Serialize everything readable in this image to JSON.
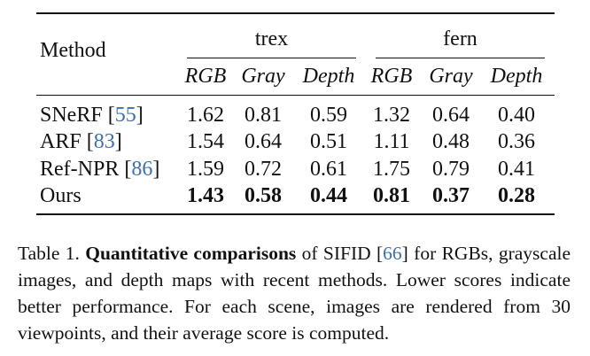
{
  "table": {
    "method_header": "Method",
    "scenes": [
      "trex",
      "fern"
    ],
    "subcolumns": [
      "RGB",
      "Gray",
      "Depth",
      "RGB",
      "Gray",
      "Depth"
    ],
    "rows": [
      {
        "method": "SNeRF",
        "cite": "55",
        "values": [
          "1.62",
          "0.81",
          "0.59",
          "1.32",
          "0.64",
          "0.40"
        ]
      },
      {
        "method": "ARF",
        "cite": "83",
        "values": [
          "1.54",
          "0.64",
          "0.51",
          "1.11",
          "0.48",
          "0.36"
        ]
      },
      {
        "method": "Ref-NPR",
        "cite": "86",
        "values": [
          "1.59",
          "0.72",
          "0.61",
          "1.75",
          "0.79",
          "0.41"
        ]
      },
      {
        "method": "Ours",
        "cite": "",
        "values": [
          "1.43",
          "0.58",
          "0.44",
          "0.81",
          "0.37",
          "0.28"
        ]
      }
    ]
  },
  "caption": {
    "label": "Table 1.",
    "bold": "Quantitative comparisons",
    "text_a": "of SIFID",
    "cite": "66",
    "text_b": "for RGBs, grayscale images, and depth maps with recent methods. Lower scores indicate better performance. For each scene, images are rendered from 30 viewpoints, and their average score is computed."
  },
  "colors": {
    "citation": "#3b6fb0",
    "text": "#111111"
  }
}
